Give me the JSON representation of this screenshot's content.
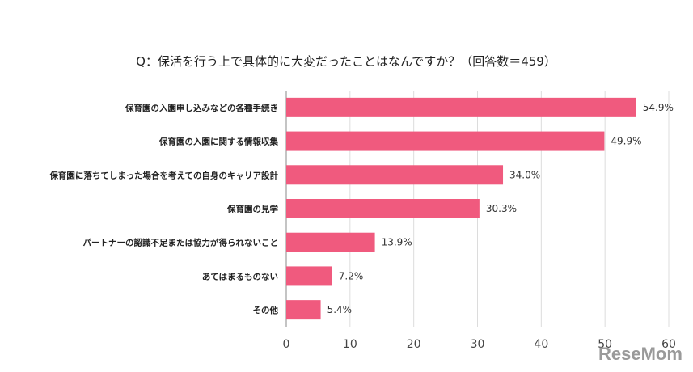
{
  "chart_data": {
    "type": "bar",
    "orientation": "horizontal",
    "title": "Q：保活を行う上で具体的に大変だったことはなんですか？（回答数＝459）",
    "categories": [
      "保育園の入園申し込みなどの各種手続き",
      "保育園の入園に関する情報収集",
      "保育園に落ちてしまった場合を考えての自身のキャリア設計",
      "保育園の見学",
      "パートナーの認識不足または協力が得られないこと",
      "あてはまるものない",
      "その他"
    ],
    "values": [
      54.9,
      49.9,
      34.0,
      30.3,
      13.9,
      7.2,
      5.4
    ],
    "value_labels": [
      "54.9%",
      "49.9%",
      "34.0%",
      "30.3%",
      "13.9%",
      "7.2%",
      "5.4%"
    ],
    "xlim": [
      0,
      60
    ],
    "xticks": [
      0,
      10,
      20,
      30,
      40,
      50,
      60
    ],
    "grid": true,
    "bar_color": "#f05a7e"
  },
  "watermark": "ReseMom"
}
